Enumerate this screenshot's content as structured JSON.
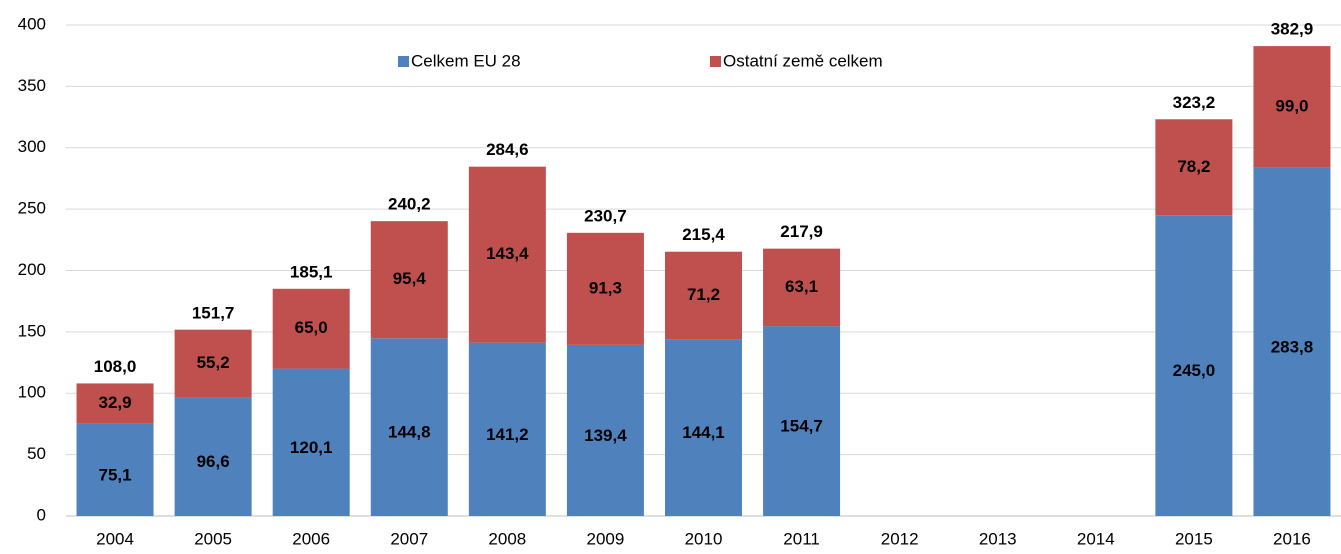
{
  "chart_data": {
    "type": "stacked_bar",
    "categories": [
      "2004",
      "2005",
      "2006",
      "2007",
      "2008",
      "2009",
      "2010",
      "2011",
      "2012",
      "2013",
      "2014",
      "2015",
      "2016"
    ],
    "series": [
      {
        "name": "Celkem EU 28",
        "color": "#4f81bd",
        "values": [
          75.1,
          96.6,
          120.1,
          144.8,
          141.2,
          139.4,
          144.1,
          154.7,
          null,
          null,
          null,
          245.0,
          283.8
        ],
        "value_labels": [
          "75,1",
          "96,6",
          "120,1",
          "144,8",
          "141,2",
          "139,4",
          "144,1",
          "154,7",
          null,
          null,
          null,
          "245,0",
          "283,8"
        ]
      },
      {
        "name": "Ostatní země celkem",
        "color": "#c0504d",
        "values": [
          32.9,
          55.2,
          65.0,
          95.4,
          143.4,
          91.3,
          71.2,
          63.1,
          null,
          null,
          null,
          78.2,
          99.0
        ],
        "value_labels": [
          "32,9",
          "55,2",
          "65,0",
          "95,4",
          "143,4",
          "91,3",
          "71,2",
          "63,1",
          null,
          null,
          null,
          "78,2",
          "99,0"
        ]
      }
    ],
    "totals": [
      108.0,
      151.7,
      185.1,
      240.2,
      284.6,
      230.7,
      215.4,
      217.9,
      null,
      null,
      null,
      323.2,
      382.9
    ],
    "total_labels": [
      "108,0",
      "151,7",
      "185,1",
      "240,2",
      "284,6",
      "230,7",
      "215,4",
      "217,9",
      null,
      null,
      null,
      "323,2",
      "382,9"
    ],
    "ylim": [
      0,
      400
    ],
    "yticks": [
      0,
      50,
      100,
      150,
      200,
      250,
      300,
      350,
      400
    ],
    "grid": true
  }
}
